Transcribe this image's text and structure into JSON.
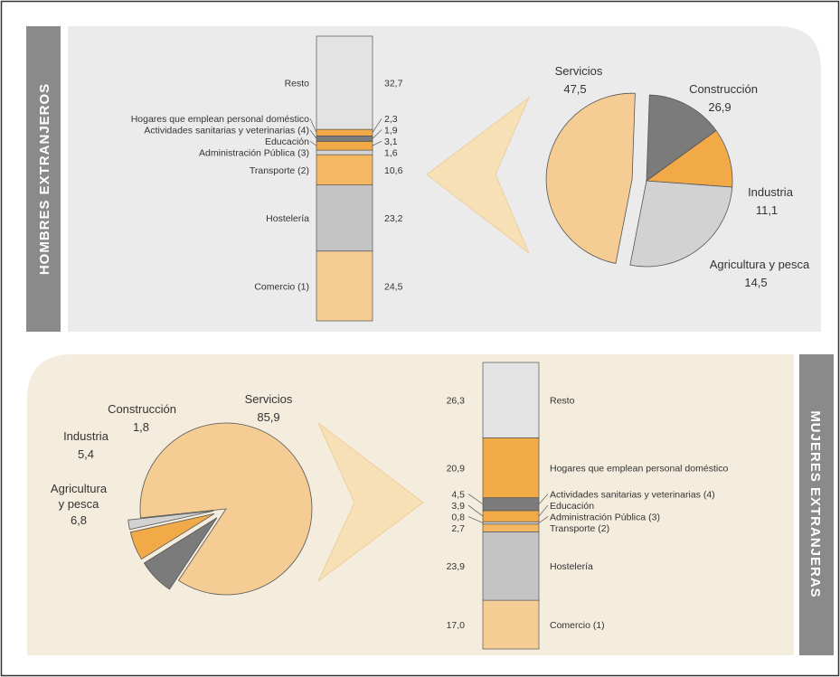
{
  "colors": {
    "servicios": "#f4cc94",
    "construccion": "#d2d2d2",
    "industria": "#f2aa48",
    "agricultura": "#7b7b7b",
    "resto": "#e3e3e3",
    "hogares": "#f2aa48",
    "sanitarias": "#7b7b7b",
    "educacion": "#f2aa48",
    "administracion": "#d4d4d4",
    "transporte": "#f4b862",
    "hosteleria": "#c4c4c4",
    "comercio": "#f4cc94",
    "panel_top": "#ebebeb",
    "panel_bottom": "#f4ecdd",
    "side_label_bg": "#8a8a8a"
  },
  "panels": {
    "top_label": "HOMBRES EXTRANJEROS",
    "bottom_label": "MUJERES EXTRANJERAS"
  },
  "chart_data": [
    {
      "type": "pie",
      "group": "men",
      "slices": [
        {
          "label": "Servicios",
          "value": 47.5,
          "value_text": "47,5",
          "color_key": "servicios",
          "exploded": true
        },
        {
          "label": "Construcción",
          "value": 26.9,
          "value_text": "26,9",
          "color_key": "construccion"
        },
        {
          "label": "Industria",
          "value": 11.1,
          "value_text": "11,1",
          "color_key": "industria"
        },
        {
          "label": "Agricultura y pesca",
          "value": 14.5,
          "value_text": "14,5",
          "color_key": "agricultura"
        }
      ]
    },
    {
      "type": "bar",
      "group": "men",
      "stacked": true,
      "unit": "percent of Servicios",
      "segments": [
        {
          "label": "Comercio (1)",
          "value": 24.5,
          "value_text": "24,5",
          "color_key": "comercio"
        },
        {
          "label": "Hostelería",
          "value": 23.2,
          "value_text": "23,2",
          "color_key": "hosteleria"
        },
        {
          "label": "Transporte (2)",
          "value": 10.6,
          "value_text": "10,6",
          "color_key": "transporte"
        },
        {
          "label": "Administración Pública (3)",
          "value": 1.6,
          "value_text": "1,6",
          "color_key": "administracion"
        },
        {
          "label": "Educación",
          "value": 3.1,
          "value_text": "3,1",
          "color_key": "educacion"
        },
        {
          "label": "Actividades sanitarias y veterinarias (4)",
          "value": 1.9,
          "value_text": "1,9",
          "color_key": "sanitarias"
        },
        {
          "label": "Hogares que emplean personal doméstico",
          "value": 2.3,
          "value_text": "2,3",
          "color_key": "hogares"
        },
        {
          "label": "Resto",
          "value": 32.7,
          "value_text": "32,7",
          "color_key": "resto"
        }
      ]
    },
    {
      "type": "pie",
      "group": "women",
      "slices": [
        {
          "label": "Servicios",
          "value": 85.9,
          "value_text": "85,9",
          "color_key": "servicios"
        },
        {
          "label": "Agricultura y pesca",
          "value": 6.8,
          "value_text": "6,8",
          "color_key": "agricultura",
          "exploded": true
        },
        {
          "label": "Industria",
          "value": 5.4,
          "value_text": "5,4",
          "color_key": "industria",
          "exploded": true
        },
        {
          "label": "Construcción",
          "value": 1.8,
          "value_text": "1,8",
          "color_key": "construccion",
          "exploded": true
        }
      ]
    },
    {
      "type": "bar",
      "group": "women",
      "stacked": true,
      "unit": "percent of Servicios",
      "segments": [
        {
          "label": "Comercio (1)",
          "value": 17.0,
          "value_text": "17,0",
          "color_key": "comercio"
        },
        {
          "label": "Hostelería",
          "value": 23.9,
          "value_text": "23,9",
          "color_key": "hosteleria"
        },
        {
          "label": "Transporte (2)",
          "value": 2.7,
          "value_text": "2,7",
          "color_key": "transporte"
        },
        {
          "label": "Administración Pública (3)",
          "value": 0.8,
          "value_text": "0,8",
          "color_key": "administracion"
        },
        {
          "label": "Educación",
          "value": 3.9,
          "value_text": "3,9",
          "color_key": "educacion"
        },
        {
          "label": "Actividades sanitarias y veterinarias (4)",
          "value": 4.5,
          "value_text": "4,5",
          "color_key": "sanitarias"
        },
        {
          "label": "Hogares que emplean personal doméstico",
          "value": 20.9,
          "value_text": "20,9",
          "color_key": "hogares"
        },
        {
          "label": "Resto",
          "value": 26.3,
          "value_text": "26,3",
          "color_key": "resto"
        }
      ]
    }
  ]
}
